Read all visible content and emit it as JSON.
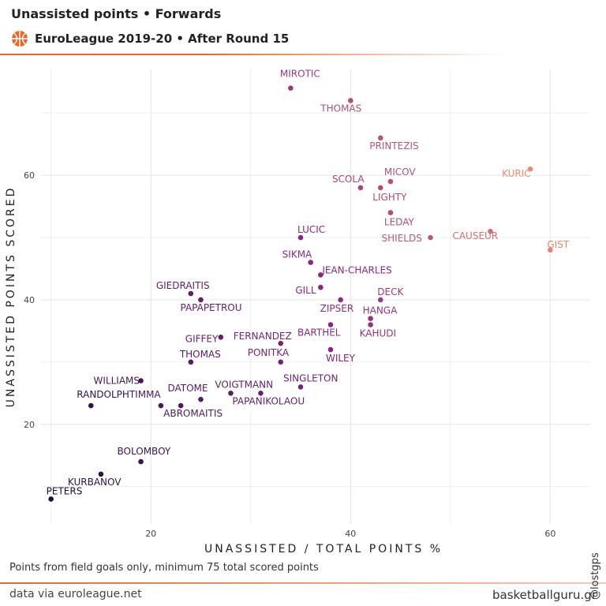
{
  "header": {
    "title": "Unassisted points • Forwards",
    "subtitle": "EuroLeague 2019-20 • After Round 15"
  },
  "footer": {
    "caption": "Points from field goals only, minimum 75 total scored points",
    "source": "data via euroleague.net",
    "brand": "basketballguru.gr",
    "handle": "@lostgps"
  },
  "colors": {
    "accent": "#e3692f",
    "grid": "#e6e6e6",
    "gradient_low": "#1b0c41",
    "gradient_mid": "#8c2981",
    "gradient_high": "#fe9f6d"
  },
  "chart_data": {
    "type": "scatter",
    "xlabel": "UNASSISTED / TOTAL POINTS %",
    "ylabel": "UNASSISTED POINTS SCORED",
    "xlim": [
      9,
      64
    ],
    "ylim": [
      4,
      77
    ],
    "xticks": [
      20,
      40,
      60
    ],
    "yticks": [
      20,
      40,
      60
    ],
    "grid": true,
    "points": [
      {
        "name": "MIROTIC",
        "x": 34,
        "y": 74
      },
      {
        "name": "THOMAS",
        "x": 40,
        "y": 72
      },
      {
        "name": "PRINTEZIS",
        "x": 43,
        "y": 66
      },
      {
        "name": "KURIC",
        "x": 58,
        "y": 61
      },
      {
        "name": "MICOV",
        "x": 44,
        "y": 59
      },
      {
        "name": "SCOLA",
        "x": 41,
        "y": 58
      },
      {
        "name": "LIGHTY",
        "x": 43,
        "y": 58
      },
      {
        "name": "LEDAY",
        "x": 44,
        "y": 54
      },
      {
        "name": "CAUSEUR",
        "x": 54,
        "y": 51
      },
      {
        "name": "LUCIC",
        "x": 35,
        "y": 50
      },
      {
        "name": "SHIELDS",
        "x": 48,
        "y": 50
      },
      {
        "name": "GIST",
        "x": 60,
        "y": 48
      },
      {
        "name": "SIKMA",
        "x": 36,
        "y": 46
      },
      {
        "name": "JEAN-CHARLES",
        "x": 37,
        "y": 44
      },
      {
        "name": "GILL",
        "x": 37,
        "y": 42
      },
      {
        "name": "GIEDRAITIS",
        "x": 24,
        "y": 41
      },
      {
        "name": "PAPAPETROU",
        "x": 25,
        "y": 40
      },
      {
        "name": "DECK",
        "x": 43,
        "y": 40
      },
      {
        "name": "ZIPSER",
        "x": 39,
        "y": 40
      },
      {
        "name": "HANGA",
        "x": 42,
        "y": 37
      },
      {
        "name": "BARTHEL",
        "x": 38,
        "y": 36
      },
      {
        "name": "KAHUDI",
        "x": 42,
        "y": 36
      },
      {
        "name": "GIFFEY",
        "x": 27,
        "y": 34
      },
      {
        "name": "FERNANDEZ",
        "x": 33,
        "y": 33
      },
      {
        "name": "PONITKA",
        "x": 33,
        "y": 30
      },
      {
        "name": "WILEY",
        "x": 38,
        "y": 32
      },
      {
        "name": "THOMAS",
        "x": 24,
        "y": 30
      },
      {
        "name": "SINGLETON",
        "x": 35,
        "y": 26
      },
      {
        "name": "WILLIAMS",
        "x": 19,
        "y": 27
      },
      {
        "name": "VOIGTMANN",
        "x": 28,
        "y": 25
      },
      {
        "name": "PAPANIKOLAOU",
        "x": 31,
        "y": 25
      },
      {
        "name": "DATOME",
        "x": 25,
        "y": 24
      },
      {
        "name": "RANDOLPH",
        "x": 14,
        "y": 23
      },
      {
        "name": "TIMMA",
        "x": 21,
        "y": 23
      },
      {
        "name": "ABROMAITIS",
        "x": 23,
        "y": 23
      },
      {
        "name": "BOLOMBOY",
        "x": 19,
        "y": 14
      },
      {
        "name": "KURBANOV",
        "x": 15,
        "y": 12
      },
      {
        "name": "PETERS",
        "x": 10,
        "y": 8
      }
    ]
  }
}
